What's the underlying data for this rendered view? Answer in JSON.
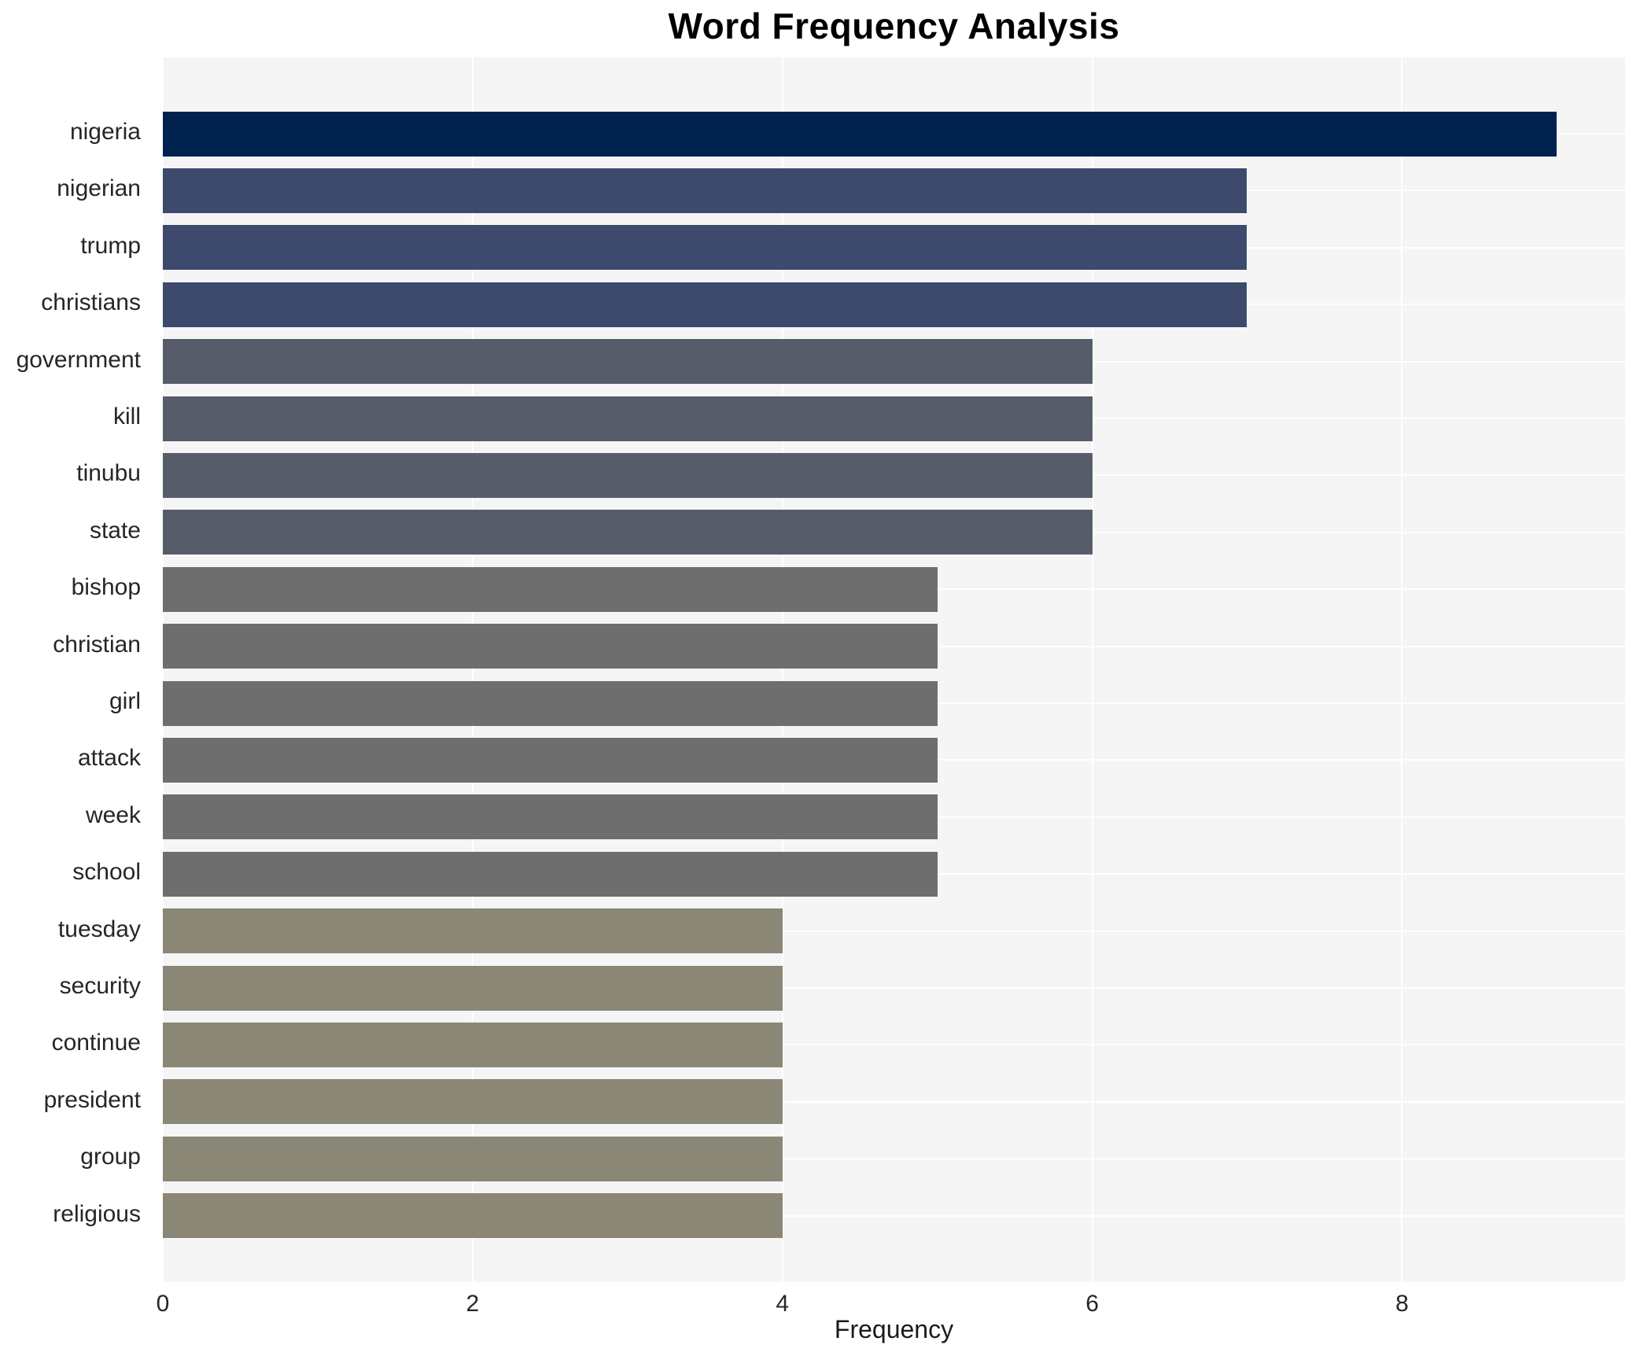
{
  "chart_data": {
    "type": "bar",
    "orientation": "horizontal",
    "title": "Word Frequency Analysis",
    "xlabel": "Frequency",
    "ylabel": "",
    "categories": [
      "nigeria",
      "nigerian",
      "trump",
      "christians",
      "government",
      "kill",
      "tinubu",
      "state",
      "bishop",
      "christian",
      "girl",
      "attack",
      "week",
      "school",
      "tuesday",
      "security",
      "continue",
      "president",
      "group",
      "religious"
    ],
    "values": [
      9,
      7,
      7,
      7,
      6,
      6,
      6,
      6,
      5,
      5,
      5,
      5,
      5,
      5,
      4,
      4,
      4,
      4,
      4,
      4
    ],
    "bar_colors": [
      "#00224e",
      "#3d4a6d",
      "#3d4a6d",
      "#3d4a6d",
      "#565c6a",
      "#565c6a",
      "#565c6a",
      "#565c6a",
      "#6e6e6e",
      "#6e6e6e",
      "#6e6e6e",
      "#6e6e6e",
      "#6e6e6e",
      "#6e6e6e",
      "#8a8777",
      "#8a8777",
      "#8a8777",
      "#8a8777",
      "#8a8777",
      "#8a8777"
    ],
    "xticks": [
      0,
      2,
      4,
      6,
      8
    ],
    "xlim": [
      0,
      9.44
    ],
    "grid": true,
    "legend_position": "none",
    "plot_background": "#f5f5f6",
    "grid_color": "#ffffff"
  }
}
